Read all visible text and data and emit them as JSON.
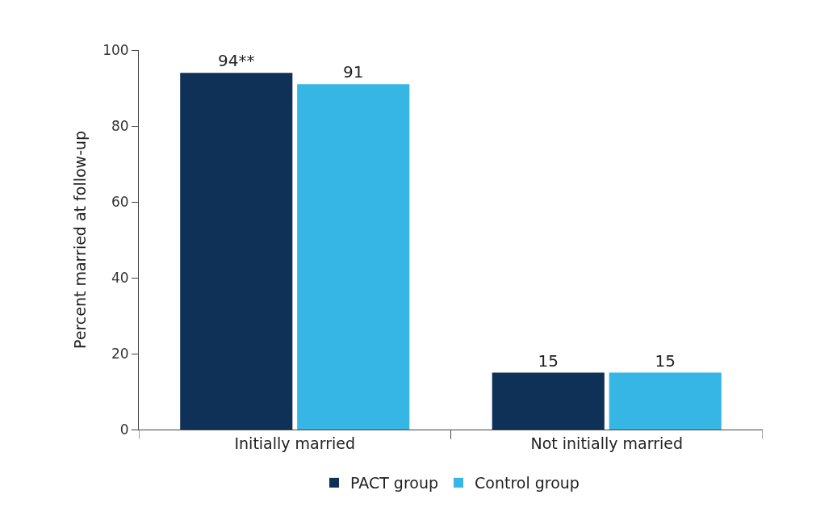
{
  "chart_data": {
    "type": "bar",
    "ylabel": "Percent married at follow-up",
    "categories": [
      "Initially married",
      "Not initially married"
    ],
    "series": [
      {
        "name": "PACT group",
        "color": "#0f3057",
        "values": [
          94,
          15
        ],
        "value_labels": [
          "94**",
          "15"
        ]
      },
      {
        "name": "Control group",
        "color": "#35b6e5",
        "values": [
          91,
          15
        ],
        "value_labels": [
          "91",
          "15"
        ]
      }
    ],
    "ylim": [
      0,
      100
    ],
    "yticks": [
      0,
      20,
      40,
      60,
      80,
      100
    ],
    "legend": "bottom"
  }
}
